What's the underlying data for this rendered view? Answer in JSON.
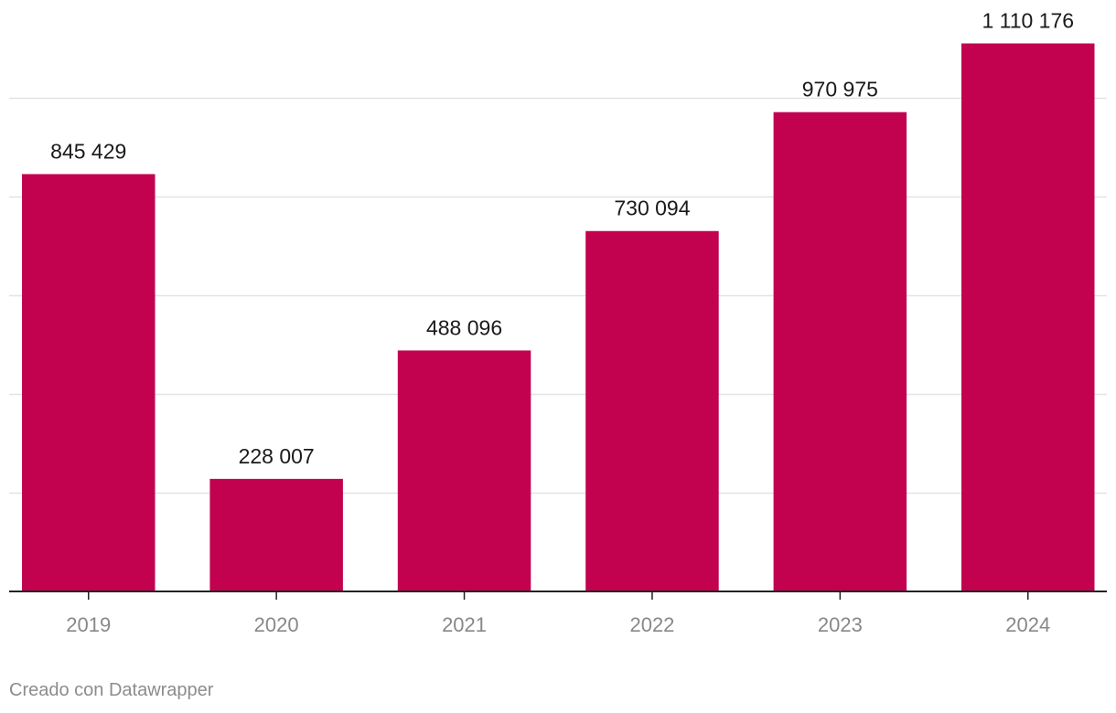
{
  "chart_data": {
    "type": "bar",
    "title": "",
    "xlabel": "",
    "ylabel": "",
    "categories": [
      "2019",
      "2020",
      "2021",
      "2022",
      "2023",
      "2024"
    ],
    "values": [
      845429,
      228007,
      488096,
      730094,
      970975,
      1110176
    ],
    "value_labels": [
      "845 429",
      "228 007",
      "488 096",
      "730 094",
      "970 975",
      "1 110 176"
    ],
    "ylim": [
      0,
      1000000
    ],
    "gridlines": [
      200000,
      400000,
      600000,
      800000,
      1000000
    ],
    "grid": true,
    "bar_color": "#c2024f",
    "gridline_color": "#e3e3e3",
    "baseline_color": "#222222",
    "tick_label_color": "#888888",
    "value_label_color": "#1a1a1a"
  },
  "footer": {
    "credit": "Creado con Datawrapper"
  }
}
